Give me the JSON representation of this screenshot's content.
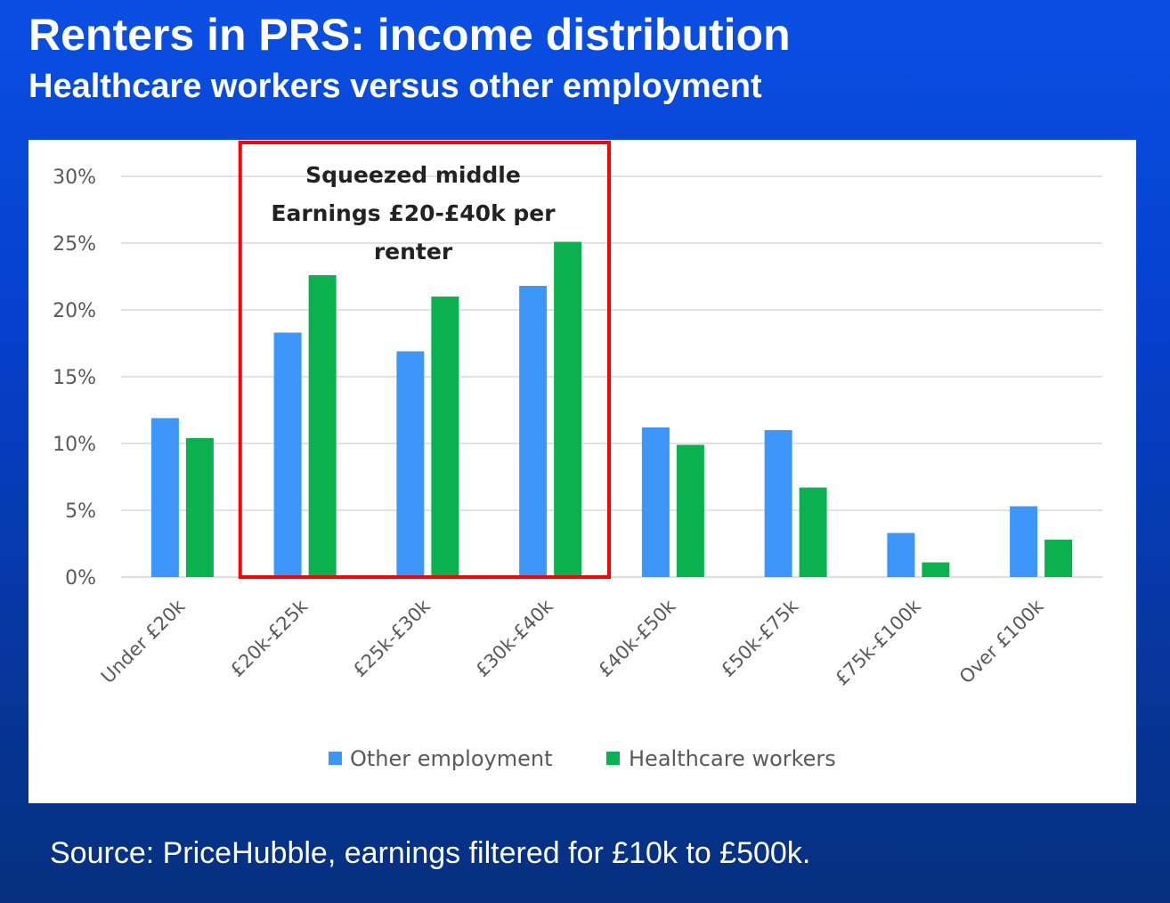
{
  "header": {
    "title": "Renters in PRS: income distribution",
    "subtitle": "Healthcare workers versus other employment"
  },
  "footer": {
    "source": "Source: PriceHubble, earnings filtered for £10k to £500k."
  },
  "colors": {
    "other_employment": "#3d97fb",
    "healthcare_workers": "#0bb14f",
    "highlight_box": "#ff0000",
    "background_top": "#0a4fe3",
    "background_bottom": "#06307f"
  },
  "chart_data": {
    "type": "bar",
    "categories": [
      "Under £20k",
      "£20k-£25k",
      "£25k-£30k",
      "£30k-£40k",
      "£40k-£50k",
      "£50k-£75k",
      "£75k-£100k",
      "Over £100k"
    ],
    "series": [
      {
        "name": "Other employment",
        "values": [
          11.9,
          18.3,
          16.9,
          21.8,
          11.2,
          11.0,
          3.3,
          5.3
        ]
      },
      {
        "name": "Healthcare workers",
        "values": [
          10.4,
          22.6,
          21.0,
          25.1,
          9.9,
          6.7,
          1.1,
          2.8
        ]
      }
    ],
    "y_ticks": [
      "0%",
      "5%",
      "10%",
      "15%",
      "20%",
      "25%",
      "30%"
    ],
    "ylim": [
      0,
      30
    ],
    "grid": true,
    "legend_position": "bottom",
    "annotation": {
      "lines": [
        "Squeezed middle",
        "Earnings £20-£40k per",
        "renter"
      ],
      "spans_categories": [
        "£20k-£25k",
        "£30k-£40k"
      ]
    }
  }
}
